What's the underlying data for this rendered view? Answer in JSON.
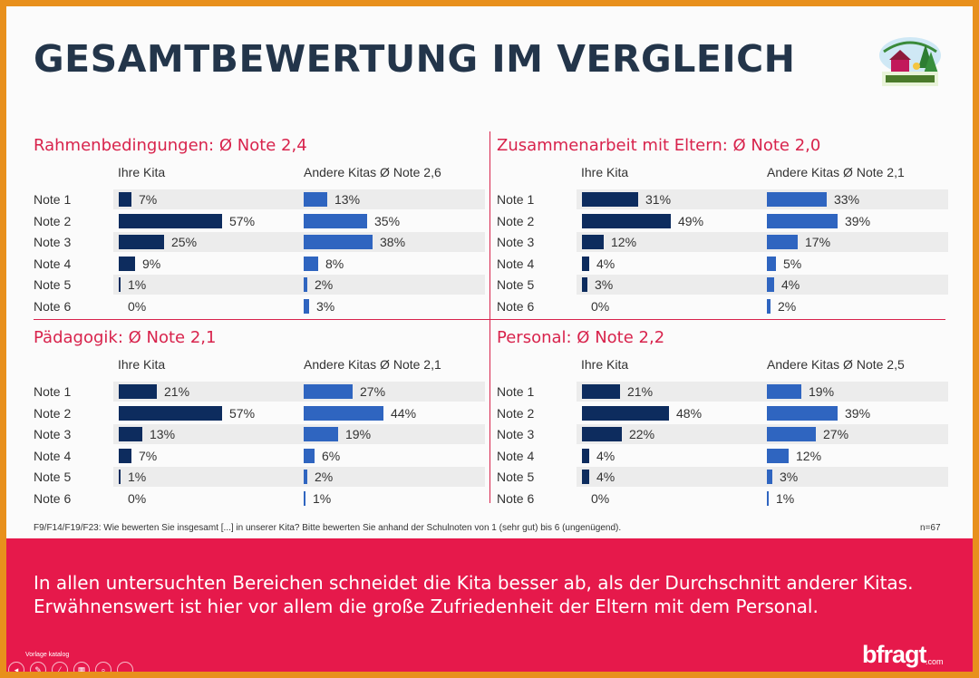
{
  "title": "GESAMTBEWERTUNG IM VERGLEICH",
  "colors": {
    "ihre": "#0d2c5e",
    "andere": "#2f65c0",
    "accent": "#e6194b"
  },
  "chart_data": [
    {
      "type": "bar",
      "title": "Rahmenbedingungen: Ø Note 2,4",
      "categories": [
        "Note 1",
        "Note 2",
        "Note 3",
        "Note 4",
        "Note 5",
        "Note 6"
      ],
      "series": [
        {
          "name": "Ihre Kita",
          "values": [
            7,
            57,
            25,
            9,
            1,
            0
          ],
          "labels": [
            "7%",
            "57%",
            "25%",
            "9%",
            "1%",
            "0%"
          ]
        },
        {
          "name": "Andere Kitas  Ø Note 2,6",
          "values": [
            13,
            35,
            38,
            8,
            2,
            3
          ],
          "labels": [
            "13%",
            "35%",
            "38%",
            "8%",
            "2%",
            "3%"
          ]
        }
      ]
    },
    {
      "type": "bar",
      "title": "Zusammenarbeit mit Eltern: Ø Note 2,0",
      "categories": [
        "Note 1",
        "Note 2",
        "Note 3",
        "Note 4",
        "Note 5",
        "Note 6"
      ],
      "series": [
        {
          "name": "Ihre Kita",
          "values": [
            31,
            49,
            12,
            4,
            3,
            0
          ],
          "labels": [
            "31%",
            "49%",
            "12%",
            "4%",
            "3%",
            "0%"
          ]
        },
        {
          "name": "Andere Kitas Ø Note 2,1",
          "values": [
            33,
            39,
            17,
            5,
            4,
            2
          ],
          "labels": [
            "33%",
            "39%",
            "17%",
            "5%",
            "4%",
            "2%"
          ]
        }
      ]
    },
    {
      "type": "bar",
      "title": "Pädagogik: Ø Note 2,1",
      "categories": [
        "Note 1",
        "Note 2",
        "Note 3",
        "Note 4",
        "Note 5",
        "Note 6"
      ],
      "series": [
        {
          "name": "Ihre Kita",
          "values": [
            21,
            57,
            13,
            7,
            1,
            0
          ],
          "labels": [
            "21%",
            "57%",
            "13%",
            "7%",
            "1%",
            "0%"
          ]
        },
        {
          "name": "Andere Kitas Ø Note 2,1",
          "values": [
            27,
            44,
            19,
            6,
            2,
            1
          ],
          "labels": [
            "27%",
            "44%",
            "19%",
            "6%",
            "2%",
            "1%"
          ]
        }
      ]
    },
    {
      "type": "bar",
      "title": "Personal: Ø Note 2,2",
      "categories": [
        "Note 1",
        "Note 2",
        "Note 3",
        "Note 4",
        "Note 5",
        "Note 6"
      ],
      "series": [
        {
          "name": "Ihre Kita",
          "values": [
            21,
            48,
            22,
            4,
            4,
            0
          ],
          "labels": [
            "21%",
            "48%",
            "22%",
            "4%",
            "4%",
            "0%"
          ]
        },
        {
          "name": "Andere Kitas Ø Note 2,5",
          "values": [
            19,
            39,
            27,
            12,
            3,
            1
          ],
          "labels": [
            "19%",
            "39%",
            "27%",
            "12%",
            "3%",
            "1%"
          ]
        }
      ]
    }
  ],
  "footnote": "F9/F14/F19/F23: Wie bewerten Sie insgesamt [...] in unserer Kita? Bitte bewerten Sie anhand der Schulnoten von 1 (sehr gut)  bis 6 (ungenügend).",
  "sample_size": "n=67",
  "conclusion": {
    "line1": "In allen untersuchten Bereichen schneidet die Kita besser ab, als der Durchschnitt anderer Kitas.",
    "line2": "Erwähnenswert ist hier vor allem die große Zufriedenheit der Eltern mit dem Personal."
  },
  "brand": {
    "name": "bfragt",
    "suffix": ".com"
  },
  "template_label": "Vorlage katalog",
  "presenter_controls": [
    {
      "icon": "previous-icon",
      "glyph": "◂"
    },
    {
      "icon": "pen-icon",
      "glyph": "✎"
    },
    {
      "icon": "pointer-icon",
      "glyph": "⁄"
    },
    {
      "icon": "slides-icon",
      "glyph": "▦"
    },
    {
      "icon": "zoom-icon",
      "glyph": "⌕"
    },
    {
      "icon": "more-icon",
      "glyph": "…"
    }
  ]
}
